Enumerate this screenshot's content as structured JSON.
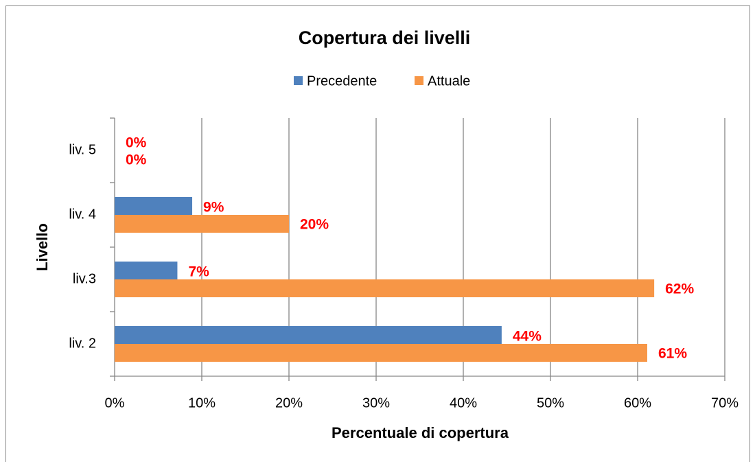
{
  "chart_data": {
    "type": "hbar",
    "title": "Copertura dei livelli",
    "x_label": "Percentuale di copertura",
    "y_label": "Livello",
    "categories": [
      "liv. 2",
      "liv.3",
      "liv. 4",
      "liv. 5"
    ],
    "series": [
      {
        "name": "Precedente",
        "color": "#4f81bd",
        "values": [
          44.4,
          7.2,
          8.9,
          0
        ],
        "value_labels": [
          "44%",
          "7%",
          "9%",
          "0%"
        ]
      },
      {
        "name": "Attuale",
        "color": "#f79646",
        "values": [
          61.1,
          61.9,
          20,
          0
        ],
        "value_labels": [
          "61%",
          "62%",
          "20%",
          "0%"
        ]
      }
    ],
    "xlim": [
      0,
      70
    ],
    "xticks": [
      {
        "value": 0,
        "label": "0%"
      },
      {
        "value": 10,
        "label": "10%"
      },
      {
        "value": 20,
        "label": "20%"
      },
      {
        "value": 30,
        "label": "30%"
      },
      {
        "value": 40,
        "label": "40%"
      },
      {
        "value": 50,
        "label": "50%"
      },
      {
        "value": 60,
        "label": "60%"
      },
      {
        "value": 70,
        "label": "70%"
      }
    ],
    "grid": true,
    "legend": "top"
  }
}
